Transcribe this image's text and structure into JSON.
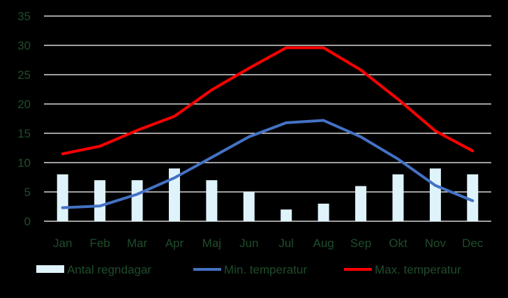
{
  "chart_data": {
    "type": "bar",
    "categories": [
      "Jan",
      "Feb",
      "Mar",
      "Apr",
      "Maj",
      "Jun",
      "Jul",
      "Aug",
      "Sep",
      "Okt",
      "Nov",
      "Dec"
    ],
    "ylim": [
      0,
      35
    ],
    "yticks": [
      "0",
      "5",
      "10",
      "15",
      "20",
      "25",
      "30",
      "35"
    ],
    "grid": true,
    "legend_position": "bottom",
    "series": [
      {
        "name": "Antal regndagar",
        "type": "bar",
        "color": "#dff3fb",
        "values": [
          8,
          7,
          7,
          9,
          7,
          5,
          2,
          3,
          6,
          8,
          9,
          8
        ]
      },
      {
        "name": "Min. temperatur",
        "type": "line",
        "color": "#4472c4",
        "values": [
          2.3,
          2.6,
          4.6,
          7.4,
          10.9,
          14.4,
          16.8,
          17.2,
          14.4,
          10.6,
          6.1,
          3.5
        ]
      },
      {
        "name": "Max. temperatur",
        "type": "line",
        "color": "#ff0000",
        "values": [
          11.5,
          12.8,
          15.5,
          17.9,
          22.4,
          26.1,
          29.6,
          29.6,
          25.8,
          20.8,
          15.4,
          12.0
        ]
      }
    ]
  }
}
